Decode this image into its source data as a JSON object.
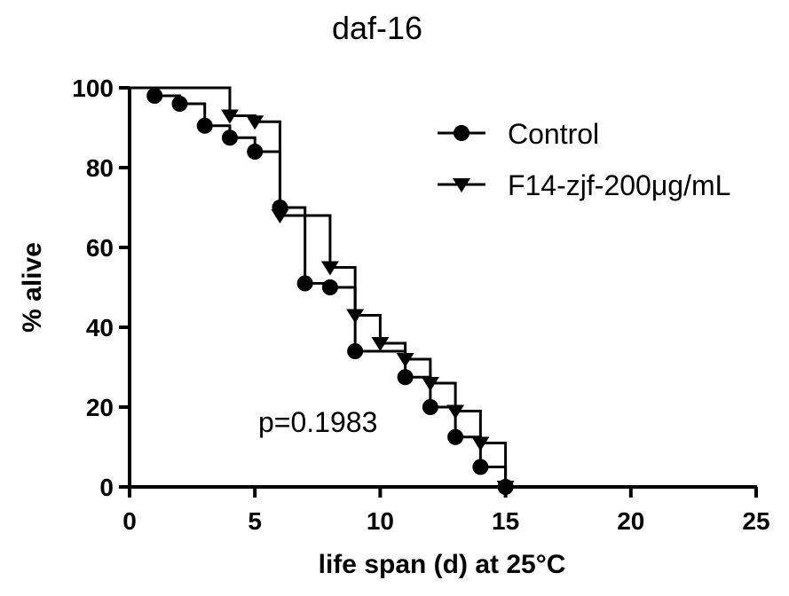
{
  "chart_data": {
    "type": "line",
    "title": "daf-16",
    "xlabel": "life span (d) at 25°C",
    "ylabel": "% alive",
    "xlim": [
      0,
      25
    ],
    "ylim": [
      0,
      100
    ],
    "xticks": [
      "0",
      "5",
      "10",
      "15",
      "20",
      "25"
    ],
    "yticks": [
      "0",
      "20",
      "40",
      "60",
      "80",
      "100"
    ],
    "grid": false,
    "legend_position": "top-right",
    "annotation": "p=0.1983",
    "series": [
      {
        "name": "Control",
        "marker": "circle",
        "step": true,
        "x": [
          1,
          2,
          3,
          4,
          5,
          6,
          7,
          8,
          9,
          11,
          12,
          13,
          14,
          15
        ],
        "y": [
          98,
          96,
          90.5,
          87.5,
          84,
          70,
          51,
          50,
          34,
          27.5,
          20,
          12.5,
          5,
          0
        ]
      },
      {
        "name": "F14-zjf-200μg/mL",
        "marker": "triangle-down",
        "step": true,
        "x": [
          4,
          5,
          6,
          8,
          9,
          10,
          11,
          12,
          13,
          14,
          15
        ],
        "y": [
          93,
          91.5,
          68,
          55,
          43,
          36,
          32,
          26,
          19,
          11,
          0
        ]
      }
    ]
  }
}
